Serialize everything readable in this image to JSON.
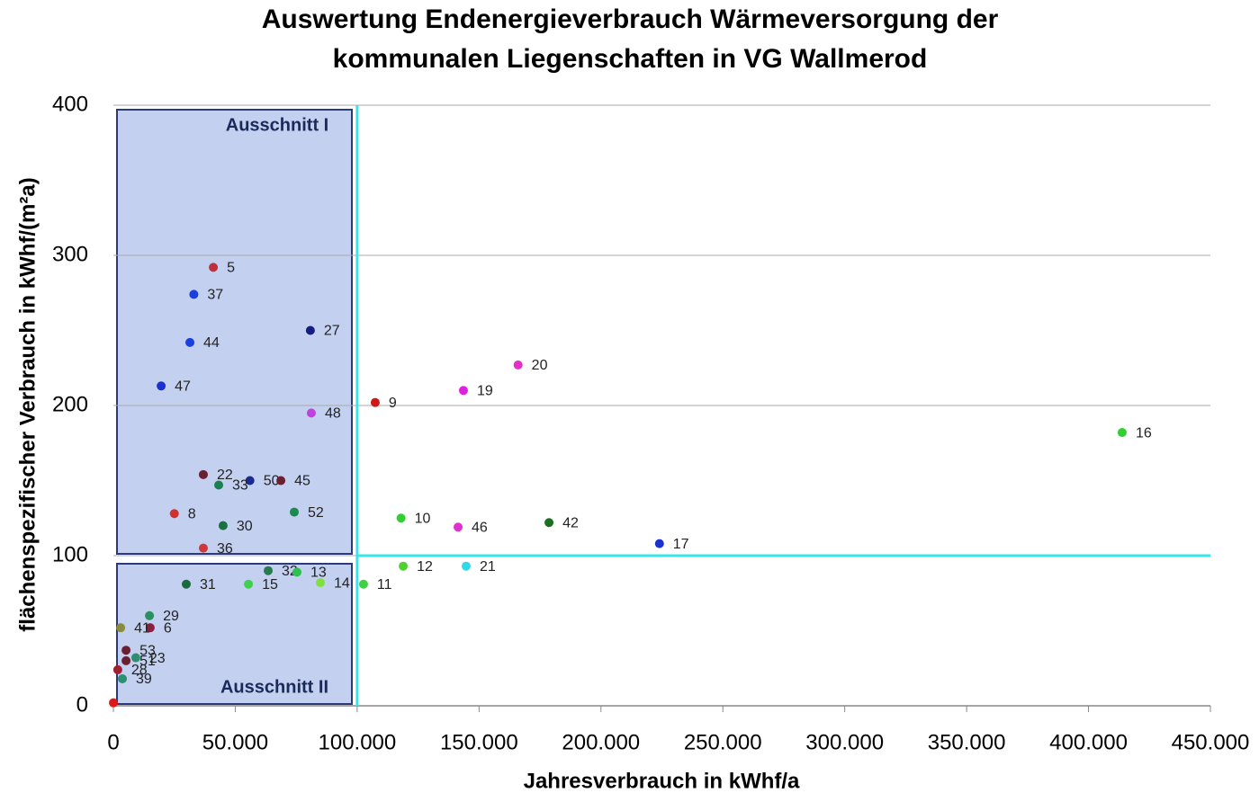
{
  "chart_data": {
    "type": "scatter",
    "title": "Auswertung Endenergieverbrauch Wärmeversorgung der kommunalen Liegenschaften in VG Wallmerod",
    "xlabel": "Jahresverbrauch in kWhf/a",
    "ylabel": "flächenspezifischer Verbrauch in kWhf/(m²a)",
    "xlim": [
      0,
      450000
    ],
    "ylim": [
      0,
      400
    ],
    "xticks": [
      0,
      {
        "value": 50000,
        "label": "50.000"
      },
      {
        "value": 100000,
        "label": "100.000"
      },
      {
        "value": 150000,
        "label": "150.000"
      },
      {
        "value": 200000,
        "label": "200.000"
      },
      {
        "value": 250000,
        "label": "250.000"
      },
      {
        "value": 300000,
        "label": "300.000"
      },
      {
        "value": 350000,
        "label": "350.000"
      },
      {
        "value": 400000,
        "label": "400.000"
      },
      {
        "value": 450000,
        "label": "450.000"
      }
    ],
    "yticks": [
      0,
      100,
      200,
      300,
      400
    ],
    "grid": true,
    "reference_lines": {
      "x": 100000,
      "y": 100,
      "color": "#33e6ee"
    },
    "annotations": [
      "Ausschnitt I",
      "Ausschnitt II"
    ],
    "points": [
      {
        "label": "5",
        "x": 41000,
        "y": 292,
        "color": "#c0303a"
      },
      {
        "label": "37",
        "x": 33000,
        "y": 274,
        "color": "#1a40e0"
      },
      {
        "label": "44",
        "x": 31400,
        "y": 242,
        "color": "#1a40e0"
      },
      {
        "label": "47",
        "x": 19600,
        "y": 213,
        "color": "#1a30d0"
      },
      {
        "label": "27",
        "x": 80800,
        "y": 250,
        "color": "#141e80"
      },
      {
        "label": "20",
        "x": 166000,
        "y": 227,
        "color": "#e030c8"
      },
      {
        "label": "19",
        "x": 143600,
        "y": 210,
        "color": "#e020e0"
      },
      {
        "label": "9",
        "x": 107400,
        "y": 202,
        "color": "#d01818"
      },
      {
        "label": "48",
        "x": 81200,
        "y": 195,
        "color": "#c040e0"
      },
      {
        "label": "16",
        "x": 413800,
        "y": 182,
        "color": "#30d030"
      },
      {
        "label": "22",
        "x": 36900,
        "y": 154,
        "color": "#6a2030"
      },
      {
        "label": "50",
        "x": 56000,
        "y": 150,
        "color": "#1a2a90"
      },
      {
        "label": "45",
        "x": 68700,
        "y": 150,
        "color": "#6a2030"
      },
      {
        "label": "33",
        "x": 43200,
        "y": 147,
        "color": "#1a8050"
      },
      {
        "label": "8",
        "x": 25000,
        "y": 128,
        "color": "#d03030"
      },
      {
        "label": "30",
        "x": 45000,
        "y": 120,
        "color": "#1a7040"
      },
      {
        "label": "52",
        "x": 74200,
        "y": 129,
        "color": "#1a8a50"
      },
      {
        "label": "36",
        "x": 36900,
        "y": 105,
        "color": "#d03838"
      },
      {
        "label": "10",
        "x": 118000,
        "y": 125,
        "color": "#30d030"
      },
      {
        "label": "46",
        "x": 141400,
        "y": 119,
        "color": "#e030d0"
      },
      {
        "label": "42",
        "x": 178700,
        "y": 122,
        "color": "#1a7020"
      },
      {
        "label": "17",
        "x": 224000,
        "y": 108,
        "color": "#1a30d0"
      },
      {
        "label": "12",
        "x": 118900,
        "y": 93,
        "color": "#50d030"
      },
      {
        "label": "21",
        "x": 144700,
        "y": 93,
        "color": "#30d8e8"
      },
      {
        "label": "32",
        "x": 63500,
        "y": 90,
        "color": "#2a7a50"
      },
      {
        "label": "13",
        "x": 75300,
        "y": 89,
        "color": "#30c050"
      },
      {
        "label": "14",
        "x": 84900,
        "y": 82,
        "color": "#80e040"
      },
      {
        "label": "11",
        "x": 102600,
        "y": 81,
        "color": "#40d040"
      },
      {
        "label": "31",
        "x": 29900,
        "y": 81,
        "color": "#1a6a40"
      },
      {
        "label": "15",
        "x": 55400,
        "y": 81,
        "color": "#40d050"
      },
      {
        "label": "29",
        "x": 14800,
        "y": 60,
        "color": "#2a9060"
      },
      {
        "label": "6",
        "x": 15100,
        "y": 52,
        "color": "#8a2040"
      },
      {
        "label": "41",
        "x": 3000,
        "y": 52,
        "color": "#8a8a40"
      },
      {
        "label": "53",
        "x": 5200,
        "y": 37,
        "color": "#6a2030"
      },
      {
        "label": "23",
        "x": 9200,
        "y": 32,
        "color": "#2a9070"
      },
      {
        "label": "51",
        "x": 5200,
        "y": 30,
        "color": "#6a2030"
      },
      {
        "label": "28",
        "x": 1800,
        "y": 24,
        "color": "#a02030"
      },
      {
        "label": "39",
        "x": 3700,
        "y": 18,
        "color": "#2a9070"
      },
      {
        "label": null,
        "x": 0,
        "y": 2,
        "color": "#e01818"
      }
    ]
  }
}
